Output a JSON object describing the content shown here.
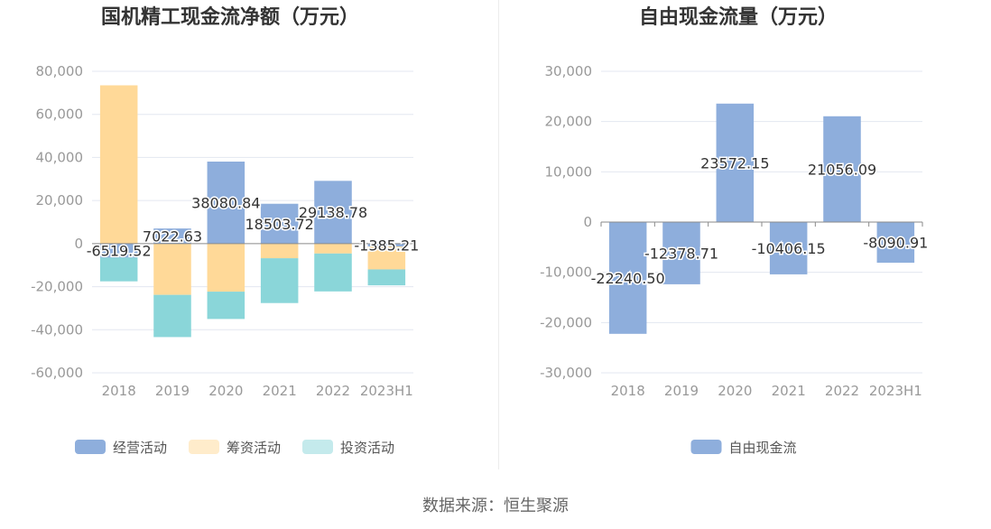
{
  "chart_data": [
    {
      "type": "bar",
      "stacked": true,
      "title": "国机精工现金流净额（万元）",
      "categories": [
        "2018",
        "2019",
        "2020",
        "2021",
        "2022",
        "2023H1"
      ],
      "ylim": [
        -60000,
        80000
      ],
      "yticks": [
        80000,
        60000,
        40000,
        20000,
        0,
        -20000,
        -40000,
        -60000
      ],
      "ytick_labels": [
        "80,000",
        "60,000",
        "40,000",
        "20,000",
        "0",
        "-20,000",
        "-40,000",
        "-60,000"
      ],
      "legend_position": "bottom",
      "series": [
        {
          "name": "经营活动",
          "color": "#8eaedc",
          "values": [
            -6519.52,
            7022.63,
            38080.84,
            18503.72,
            29138.78,
            -1385.21
          ]
        },
        {
          "name": "筹资活动",
          "color": "#ffd998",
          "values": [
            73500,
            -23800,
            -22300,
            -6800,
            -4600,
            -10600
          ]
        },
        {
          "name": "投资活动",
          "color": "#8ad6d9",
          "values": [
            -11000,
            -19600,
            -12700,
            -20800,
            -17600,
            -7400
          ]
        }
      ],
      "data_labels": [
        "-6519.52",
        "7022.63",
        "38080.84",
        "18503.72",
        "29138.78",
        "-1385.21"
      ]
    },
    {
      "type": "bar",
      "title": "自由现金流量（万元）",
      "categories": [
        "2018",
        "2019",
        "2020",
        "2021",
        "2022",
        "2023H1"
      ],
      "ylim": [
        -30000,
        30000
      ],
      "yticks": [
        30000,
        20000,
        10000,
        0,
        -10000,
        -20000,
        -30000
      ],
      "ytick_labels": [
        "30,000",
        "20,000",
        "10,000",
        "0",
        "-10,000",
        "-20,000",
        "-30,000"
      ],
      "legend_position": "bottom",
      "series": [
        {
          "name": "自由现金流",
          "color": "#8eaedc",
          "values": [
            -22240.5,
            -12378.71,
            23572.15,
            -10406.15,
            21056.09,
            -8090.91
          ]
        }
      ],
      "data_labels": [
        "-22240.50",
        "-12378.71",
        "23572.15",
        "-10406.15",
        "21056.09",
        "-8090.91"
      ]
    }
  ],
  "source": "数据来源：恒生聚源"
}
